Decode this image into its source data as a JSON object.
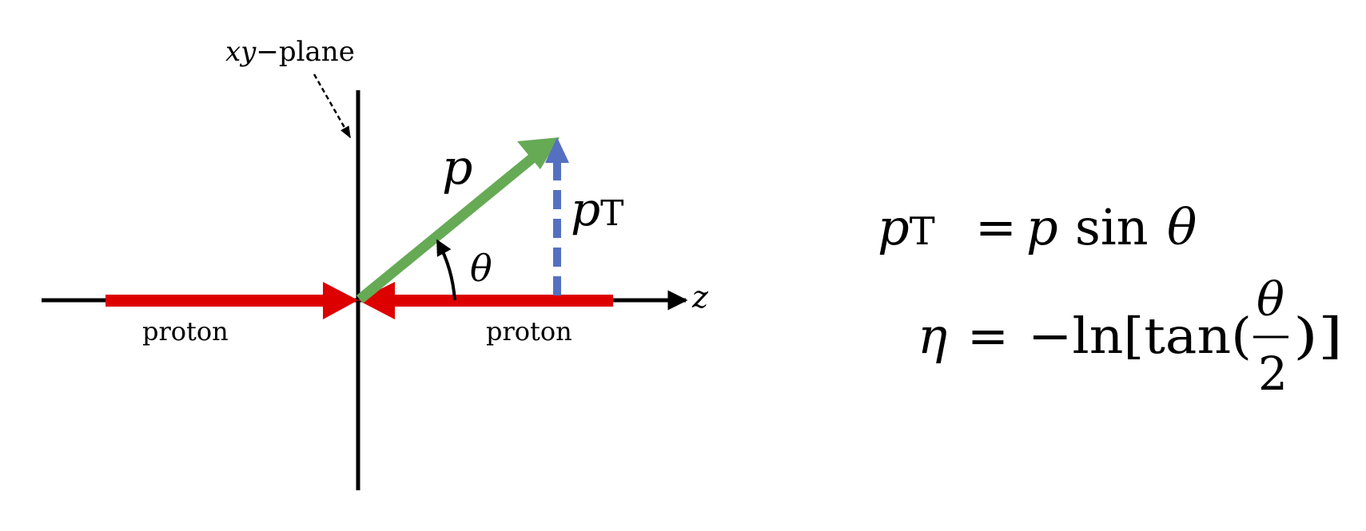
{
  "diagram": {
    "plane_label_var": "xy",
    "plane_label_dash": "−",
    "plane_label_word": "plane",
    "axis_label": "z",
    "proton_left": "proton",
    "proton_right": "proton",
    "momentum_label": "p",
    "transverse_label_p": "p",
    "transverse_label_sub": "T",
    "angle_label": "θ"
  },
  "equations": {
    "pt": {
      "lhs_p": "p",
      "lhs_sub": "T",
      "equals": "=",
      "rhs_p": "p",
      "rhs_sin": "sin",
      "rhs_theta": "θ"
    },
    "eta": {
      "lhs": "η",
      "equals": "=",
      "prefix": "−ln[tan(",
      "frac_num": "θ",
      "frac_den": "2",
      "suffix": ")]"
    }
  },
  "colors": {
    "axis": "#000000",
    "proton_beam": "#dd0000",
    "momentum_vector": "#66aa55",
    "transverse_vector": "#5570c0"
  }
}
